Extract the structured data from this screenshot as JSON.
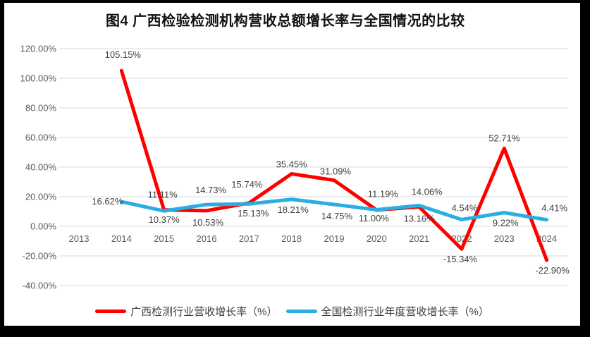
{
  "title": "图4 广西检验检测机构营收总额增长率与全国情况的比较",
  "legend": [
    {
      "label": "广西检测行业营收增长率（%）",
      "color": "#ff0000"
    },
    {
      "label": "全国检测行业年度营收增长率（%）",
      "color": "#29ade3"
    }
  ],
  "chart_data": {
    "type": "line",
    "title": "图4 广西检验检测机构营收总额增长率与全国情况的比较",
    "categories": [
      "2013",
      "2014",
      "2015",
      "2016",
      "2017",
      "2018",
      "2019",
      "2020",
      "2021",
      "2022",
      "2023",
      "2024"
    ],
    "series": [
      {
        "name": "广西检测行业营收增长率（%）",
        "color": "#ff0000",
        "values": [
          null,
          105.15,
          11.11,
          10.53,
          15.74,
          35.45,
          31.09,
          11.0,
          13.16,
          -15.34,
          52.71,
          -22.9
        ],
        "labels": [
          null,
          "105.15%",
          "11.11%",
          "10.53%",
          "15.74%",
          "35.45%",
          "31.09%",
          "11.00%",
          "13.16%",
          "-15.34%",
          "52.71%",
          "-22.90%"
        ],
        "label_offsets": [
          null,
          [
            2,
            -18
          ],
          [
            -2,
            -17
          ],
          [
            2,
            21
          ],
          [
            -3,
            -22
          ],
          [
            0,
            -9
          ],
          [
            2,
            -8
          ],
          [
            -4,
            16
          ],
          [
            0,
            21
          ],
          [
            -2,
            19
          ],
          [
            0,
            -10
          ],
          [
            8,
            19
          ]
        ]
      },
      {
        "name": "全国检测行业年度营收增长率（%）",
        "color": "#29ade3",
        "values": [
          null,
          16.62,
          10.37,
          14.73,
          15.13,
          18.21,
          14.75,
          11.19,
          14.06,
          4.54,
          9.22,
          4.41
        ],
        "labels": [
          null,
          "16.62%",
          "10.37%",
          "14.73%",
          "15.13%",
          "18.21%",
          "14.75%",
          "11.19%",
          "14.06%",
          "4.54%",
          "9.22%",
          "4.41%"
        ],
        "label_offsets": [
          null,
          [
            -20,
            4
          ],
          [
            0,
            17
          ],
          [
            6,
            -16
          ],
          [
            6,
            18
          ],
          [
            2,
            19
          ],
          [
            4,
            21
          ],
          [
            9,
            -18
          ],
          [
            11,
            -15
          ],
          [
            4,
            -12
          ],
          [
            2,
            19
          ],
          [
            11,
            -12
          ]
        ]
      }
    ],
    "y_axis": {
      "min": -40,
      "max": 120,
      "step": 20,
      "tick_labels": [
        "120.00%",
        "100.00%",
        "80.00%",
        "60.00%",
        "40.00%",
        "20.00%",
        "0.00%",
        "-20.00%",
        "-40.00%"
      ]
    },
    "grid": true,
    "legend_position": "bottom",
    "colors": {
      "grid": "#d9d9d9",
      "axis_text": "#595959",
      "data_label_text": "#404040",
      "border": "#000000",
      "background": "#ffffff"
    }
  }
}
